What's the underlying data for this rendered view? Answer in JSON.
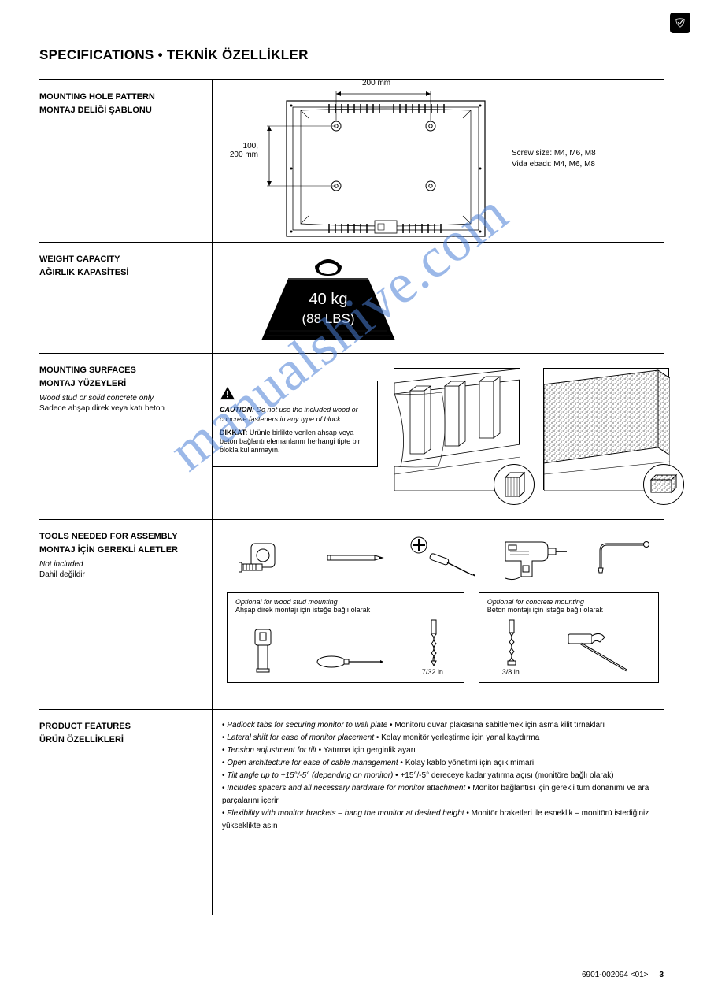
{
  "corner_badge_icon": "safety-emblem",
  "title": "SPECIFICATIONS • TEKNİK ÖZELLİKLER",
  "rows": {
    "mounting": {
      "label_en": "MOUNTING HOLE PATTERN",
      "label_tr": "MONTAJ DELİĞİ ŞABLONU",
      "dim_top": "200 mm",
      "dim_left": "100,\n200 mm",
      "screw_note": "Screw size: M4, M6, M8\nVida ebadı: M4, M6, M8"
    },
    "weight": {
      "label_en": "WEIGHT CAPACITY",
      "label_tr": "AĞIRLIK KAPASİTESİ",
      "icon_top": "40 kg",
      "icon_bottom": "(88 LBS)"
    },
    "surfaces": {
      "label_en": "MOUNTING SURFACES",
      "label_tr": "MONTAJ YÜZEYLERİ",
      "sub_en": "Wood stud or solid concrete only",
      "sub_tr": "Sadece ahşap direk veya katı beton",
      "caution_en": "CAUTION:",
      "caution_en_body": "Do not use the included wood or concrete fasteners in any type of block.",
      "caution_tr": "DİKKAT:",
      "caution_tr_body": "Ürünle birlikte verilen ahşap veya beton bağlantı elemanlarını herhangi tipte bir blokla kullanmayın."
    },
    "tools": {
      "label_en": "TOOLS NEEDED FOR ASSEMBLY",
      "label_tr": "MONTAJ İÇİN GEREKLİ ALETLER",
      "sub_en": "Not included",
      "sub_tr": "Dahil değildir",
      "tool_names": [
        "tape-measure",
        "pencil",
        "phillips-screwdriver",
        "power-drill",
        "hex-key"
      ],
      "opt_wood": {
        "title_en": "Optional for wood stud mounting",
        "title_tr": "Ahşap direk montajı için isteğe bağlı olarak",
        "tool_names": [
          "stud-finder",
          "awl",
          "drill-bit-small"
        ],
        "drill_label": "7/32 in."
      },
      "opt_concrete": {
        "title_en": "Optional for concrete mounting",
        "title_tr": "Beton montajı için isteğe bağlı olarak",
        "tool_names": [
          "masonry-bit",
          "hammer"
        ],
        "drill_label": "3/8 in."
      }
    },
    "features": {
      "label_en": "PRODUCT FEATURES",
      "label_tr": "ÜRÜN ÖZELLİKLERİ",
      "bullet_symbol": "•",
      "items": [
        {
          "en": "Padlock tabs for securing monitor to wall plate",
          "tr": "Monitörü duvar plakasına sabitlemek için asma kilit tırnakları"
        },
        {
          "en": "Lateral shift for ease of monitor placement",
          "tr": "Kolay monitör yerleştirme için yanal kaydırma"
        },
        {
          "en": "Tension adjustment for tilt",
          "tr": "Yatırma için gerginlik ayarı"
        },
        {
          "en": "Open architecture for ease of cable management",
          "tr": "Kolay kablo yönetimi için açık mimari"
        },
        {
          "en": "Tilt angle up to +15°/-5° (depending on monitor)",
          "tr": "+15°/-5° dereceye kadar yatırma açısı (monitöre bağlı olarak)"
        },
        {
          "en": "Includes spacers and all necessary hardware for monitor attachment",
          "tr": "Monitör bağlantısı için gerekli tüm donanımı ve ara parçalarını içerir"
        },
        {
          "en": "Flexibility with monitor brackets – hang the monitor at desired height",
          "tr": "Monitör braketleri ile esneklik – monitörü istediğiniz yükseklikte asın"
        }
      ]
    }
  },
  "watermark_text": "manualshive.com",
  "page_number": "3",
  "doc_ref": "6901-002094 <01>",
  "colors": {
    "watermark": "#4a7fd6",
    "ink": "#000000",
    "bg": "#ffffff"
  }
}
